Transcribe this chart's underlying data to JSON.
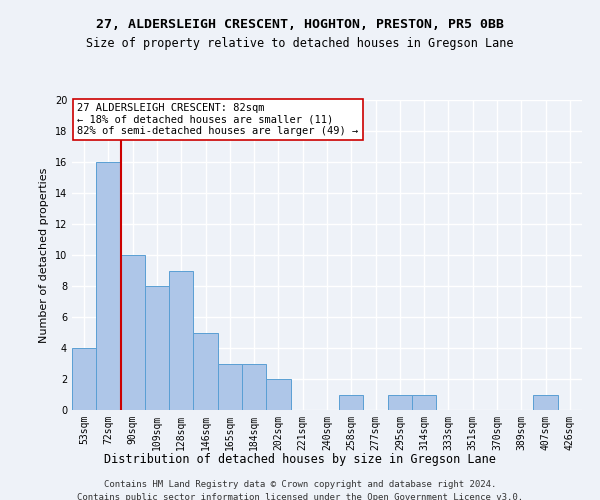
{
  "title1": "27, ALDERSLEIGH CRESCENT, HOGHTON, PRESTON, PR5 0BB",
  "title2": "Size of property relative to detached houses in Gregson Lane",
  "xlabel": "Distribution of detached houses by size in Gregson Lane",
  "ylabel": "Number of detached properties",
  "bar_labels": [
    "53sqm",
    "72sqm",
    "90sqm",
    "109sqm",
    "128sqm",
    "146sqm",
    "165sqm",
    "184sqm",
    "202sqm",
    "221sqm",
    "240sqm",
    "258sqm",
    "277sqm",
    "295sqm",
    "314sqm",
    "333sqm",
    "351sqm",
    "370sqm",
    "389sqm",
    "407sqm",
    "426sqm"
  ],
  "bar_values": [
    4,
    16,
    10,
    8,
    9,
    5,
    3,
    3,
    2,
    0,
    0,
    1,
    0,
    1,
    1,
    0,
    0,
    0,
    0,
    1,
    0
  ],
  "bar_color": "#aec6e8",
  "bar_edge_color": "#5a9fd4",
  "vline_x_index": 1,
  "vline_color": "#cc0000",
  "annotation_text": "27 ALDERSLEIGH CRESCENT: 82sqm\n← 18% of detached houses are smaller (11)\n82% of semi-detached houses are larger (49) →",
  "annotation_box_color": "#ffffff",
  "annotation_box_edge": "#cc0000",
  "ylim": [
    0,
    20
  ],
  "yticks": [
    0,
    2,
    4,
    6,
    8,
    10,
    12,
    14,
    16,
    18,
    20
  ],
  "footer1": "Contains HM Land Registry data © Crown copyright and database right 2024.",
  "footer2": "Contains public sector information licensed under the Open Government Licence v3.0.",
  "background_color": "#eef2f8",
  "grid_color": "#ffffff",
  "title1_fontsize": 9.5,
  "title2_fontsize": 8.5,
  "xlabel_fontsize": 8.5,
  "ylabel_fontsize": 8,
  "tick_fontsize": 7,
  "annotation_fontsize": 7.5,
  "footer_fontsize": 6.5
}
